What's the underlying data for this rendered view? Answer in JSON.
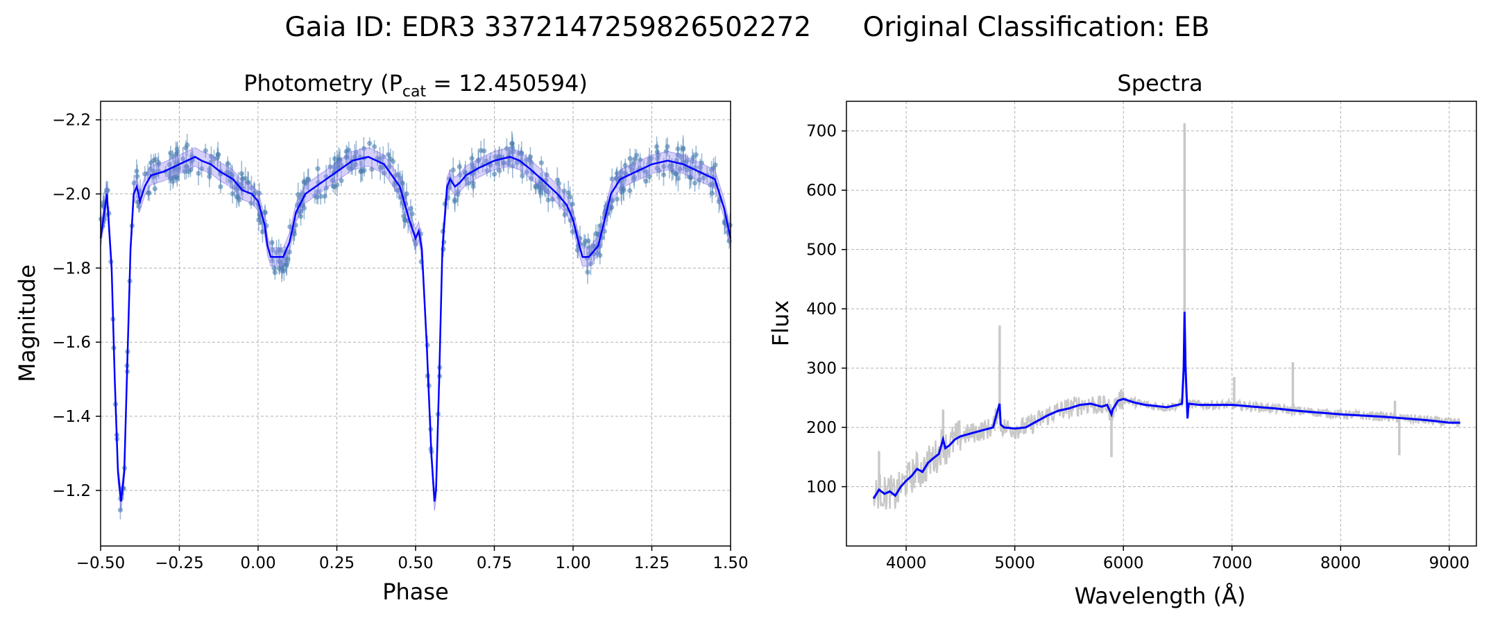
{
  "suptitle": "Gaia ID: EDR3 3372147259826502272      Original Classification: EB",
  "colors": {
    "model_line": "#0000ff",
    "model_band": "#9a8cf0",
    "data_points": "#4a7fb0",
    "spectrum_raw": "#c8c8c8",
    "spectrum_smooth": "#0000ff",
    "grid": "#b0b0b0"
  },
  "chart_data": [
    {
      "type": "scatter",
      "title_main": "Photometry (P",
      "title_sub": "cat",
      "title_rest": " = 12.450594)",
      "xlabel": "Phase",
      "ylabel": "Magnitude",
      "xlim": [
        -0.5,
        1.5
      ],
      "ylim": [
        -2.25,
        -1.05
      ],
      "y_inverted": true,
      "grid": true,
      "xticks": [
        -0.5,
        -0.25,
        0.0,
        0.25,
        0.5,
        0.75,
        1.0,
        1.25,
        1.5
      ],
      "xtick_labels": [
        "−0.50",
        "−0.25",
        "0.00",
        "0.25",
        "0.50",
        "0.75",
        "1.00",
        "1.25",
        "1.50"
      ],
      "yticks": [
        -2.2,
        -2.0,
        -1.8,
        -1.6,
        -1.4,
        -1.2
      ],
      "ytick_labels": [
        "−2.2",
        "−2.0",
        "−1.8",
        "−1.6",
        "−1.4",
        "−1.2"
      ],
      "model": {
        "name": "model",
        "x": [
          -0.5,
          -0.48,
          -0.465,
          -0.455,
          -0.445,
          -0.435,
          -0.425,
          -0.415,
          -0.405,
          -0.395,
          -0.385,
          -0.375,
          -0.36,
          -0.34,
          -0.3,
          -0.25,
          -0.2,
          -0.18,
          -0.15,
          -0.12,
          -0.08,
          -0.05,
          -0.02,
          0.0,
          0.02,
          0.03,
          0.04,
          0.05,
          0.08,
          0.1,
          0.12,
          0.15,
          0.2,
          0.25,
          0.3,
          0.35,
          0.4,
          0.45,
          0.48,
          0.5,
          0.51,
          0.52,
          0.535,
          0.55,
          0.56,
          0.565,
          0.575,
          0.585,
          0.6,
          0.61,
          0.625,
          0.64,
          0.66,
          0.7,
          0.75,
          0.8,
          0.83,
          0.86,
          0.9,
          0.95,
          0.98,
          1.0,
          1.02,
          1.03,
          1.04,
          1.05,
          1.08,
          1.1,
          1.12,
          1.15,
          1.2,
          1.25,
          1.3,
          1.35,
          1.4,
          1.45,
          1.48,
          1.5
        ],
        "y": [
          -1.88,
          -2.0,
          -1.8,
          -1.5,
          -1.25,
          -1.17,
          -1.25,
          -1.55,
          -1.85,
          -2.0,
          -2.02,
          -1.98,
          -2.02,
          -2.05,
          -2.06,
          -2.08,
          -2.1,
          -2.09,
          -2.08,
          -2.06,
          -2.04,
          -2.01,
          -2.0,
          -1.98,
          -1.92,
          -1.86,
          -1.83,
          -1.83,
          -1.83,
          -1.87,
          -1.95,
          -2.0,
          -2.03,
          -2.06,
          -2.09,
          -2.1,
          -2.08,
          -2.02,
          -1.93,
          -1.88,
          -1.9,
          -1.85,
          -1.6,
          -1.3,
          -1.17,
          -1.2,
          -1.5,
          -1.85,
          -2.02,
          -2.04,
          -2.02,
          -2.03,
          -2.05,
          -2.07,
          -2.09,
          -2.1,
          -2.09,
          -2.07,
          -2.04,
          -2.0,
          -1.97,
          -1.93,
          -1.86,
          -1.83,
          -1.83,
          -1.83,
          -1.86,
          -1.93,
          -2.0,
          -2.04,
          -2.06,
          -2.08,
          -2.09,
          -2.08,
          -2.06,
          -2.04,
          -1.96,
          -1.88
        ],
        "band_width": 0.025
      },
      "scatter_seed_note": "",
      "data_band": [
        {
          "x0": -0.5,
          "x1": -0.38,
          "min_y": -1.12,
          "max_y": -2.03
        },
        {
          "x0": -0.38,
          "x1": 0.0,
          "min_y": -1.95,
          "max_y": -2.15
        },
        {
          "x0": 0.0,
          "x1": 0.12,
          "min_y": -1.78,
          "max_y": -2.0
        },
        {
          "x0": 0.12,
          "x1": 0.48,
          "min_y": -1.95,
          "max_y": -2.15
        },
        {
          "x0": 0.48,
          "x1": 0.62,
          "min_y": -1.12,
          "max_y": -2.03
        },
        {
          "x0": 0.62,
          "x1": 1.0,
          "min_y": -1.95,
          "max_y": -2.15
        },
        {
          "x0": 1.0,
          "x1": 1.12,
          "min_y": -1.78,
          "max_y": -2.0
        },
        {
          "x0": 1.12,
          "x1": 1.5,
          "min_y": -1.95,
          "max_y": -2.15
        }
      ]
    },
    {
      "type": "line",
      "title": "Spectra",
      "xlabel": "Wavelength (Å)",
      "ylabel": "Flux",
      "xlim": [
        3450,
        9250
      ],
      "ylim": [
        0,
        750
      ],
      "grid": true,
      "xticks": [
        4000,
        5000,
        6000,
        7000,
        8000,
        9000
      ],
      "xtick_labels": [
        "4000",
        "5000",
        "6000",
        "7000",
        "8000",
        "9000"
      ],
      "yticks": [
        100,
        200,
        300,
        400,
        500,
        600,
        700
      ],
      "ytick_labels": [
        "100",
        "200",
        "300",
        "400",
        "500",
        "600",
        "700"
      ],
      "smooth": {
        "name": "smoothed",
        "x": [
          3700,
          3750,
          3800,
          3850,
          3900,
          3950,
          4000,
          4050,
          4100,
          4150,
          4200,
          4250,
          4300,
          4340,
          4360,
          4400,
          4450,
          4500,
          4600,
          4700,
          4800,
          4860,
          4870,
          4900,
          5000,
          5100,
          5200,
          5300,
          5400,
          5500,
          5600,
          5700,
          5800,
          5850,
          5890,
          5900,
          5950,
          6000,
          6100,
          6200,
          6300,
          6400,
          6500,
          6540,
          6555,
          6563,
          6572,
          6590,
          6600,
          6700,
          6800,
          7000,
          7200,
          7400,
          7600,
          7800,
          8000,
          8200,
          8400,
          8600,
          8800,
          9000,
          9100
        ],
        "y": [
          80,
          95,
          88,
          92,
          85,
          100,
          110,
          118,
          130,
          125,
          140,
          148,
          155,
          180,
          165,
          170,
          180,
          185,
          190,
          195,
          200,
          240,
          205,
          200,
          198,
          200,
          210,
          220,
          228,
          232,
          238,
          240,
          235,
          238,
          222,
          230,
          245,
          248,
          242,
          238,
          236,
          234,
          238,
          240,
          300,
          395,
          300,
          215,
          240,
          238,
          238,
          238,
          235,
          232,
          228,
          225,
          222,
          220,
          218,
          215,
          212,
          208,
          208
        ]
      },
      "raw_spikes": [
        {
          "x": 3750,
          "y": 160
        },
        {
          "x": 4340,
          "y": 230
        },
        {
          "x": 4861,
          "y": 372
        },
        {
          "x": 5890,
          "y": 150
        },
        {
          "x": 6563,
          "y": 713
        },
        {
          "x": 7020,
          "y": 285
        },
        {
          "x": 7560,
          "y": 310
        },
        {
          "x": 8500,
          "y": 245
        },
        {
          "x": 8540,
          "y": 153
        }
      ]
    }
  ]
}
